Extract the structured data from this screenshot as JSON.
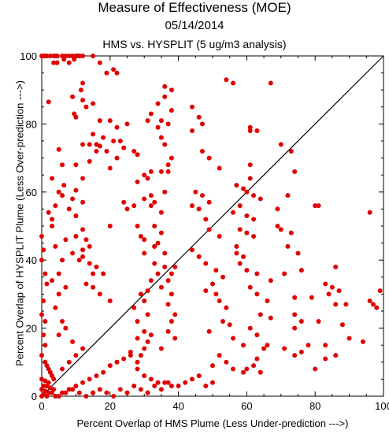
{
  "chart_data": {
    "type": "scatter",
    "title": "Measure of Effectiveness (MOE)",
    "subtitle": "05/14/2014",
    "subtitle2": "HMS vs. HYSPLIT  (5 ug/m3 analysis)",
    "xlabel": "Percent Overlap of HMS Plume (Less Under-prediction --->)",
    "ylabel": "Percent Overlap of HYSPLIT Plume (Less Over-prediction --->)",
    "xlim": [
      0,
      100
    ],
    "ylim": [
      0,
      100
    ],
    "xticks": [
      "0",
      "20",
      "40",
      "60",
      "80",
      "100"
    ],
    "yticks": [
      "0",
      "20",
      "40",
      "60",
      "80",
      "100"
    ],
    "grid": false,
    "reference_line": "diagonal y = x",
    "point_color": "#e00000",
    "points": [
      [
        0,
        100
      ],
      [
        0.5,
        100
      ],
      [
        1,
        100
      ],
      [
        1.5,
        100
      ],
      [
        2.5,
        100
      ],
      [
        3.5,
        100
      ],
      [
        4,
        100
      ],
      [
        4.5,
        100
      ],
      [
        6,
        100
      ],
      [
        7,
        100
      ],
      [
        8,
        100
      ],
      [
        9,
        100
      ],
      [
        10,
        100
      ],
      [
        10.5,
        100
      ],
      [
        11,
        100
      ],
      [
        12,
        100
      ],
      [
        15,
        100
      ],
      [
        6.5,
        99
      ],
      [
        9.5,
        99
      ],
      [
        3.5,
        98
      ],
      [
        4.5,
        98
      ],
      [
        8,
        98
      ],
      [
        17,
        98
      ],
      [
        21,
        96
      ],
      [
        19,
        95
      ],
      [
        22,
        95
      ],
      [
        12,
        92
      ],
      [
        11.5,
        90
      ],
      [
        9,
        88
      ],
      [
        12,
        87
      ],
      [
        2,
        86.5
      ],
      [
        15,
        86
      ],
      [
        13,
        85
      ],
      [
        9.5,
        83
      ],
      [
        10,
        82
      ],
      [
        17,
        81
      ],
      [
        20,
        81
      ],
      [
        25,
        80
      ],
      [
        22,
        79
      ],
      [
        15,
        77
      ],
      [
        18,
        76
      ],
      [
        21,
        75
      ],
      [
        23,
        75
      ],
      [
        12,
        74
      ],
      [
        14,
        74
      ],
      [
        16,
        74
      ],
      [
        17,
        73.5
      ],
      [
        5,
        72.5
      ],
      [
        16,
        72
      ],
      [
        19,
        72
      ],
      [
        24,
        73
      ],
      [
        27,
        72
      ],
      [
        28,
        71
      ],
      [
        22,
        70
      ],
      [
        14,
        69
      ],
      [
        10,
        68
      ],
      [
        20,
        67
      ],
      [
        12,
        64
      ],
      [
        6.5,
        62
      ],
      [
        10,
        60.5
      ],
      [
        6,
        59
      ],
      [
        9,
        58
      ],
      [
        12,
        57
      ],
      [
        8,
        55
      ],
      [
        10,
        53
      ],
      [
        3,
        52
      ],
      [
        20,
        50
      ],
      [
        12,
        49
      ],
      [
        10,
        47
      ],
      [
        13,
        46
      ],
      [
        14,
        44
      ],
      [
        12,
        43
      ],
      [
        9,
        42
      ],
      [
        12,
        41
      ],
      [
        11,
        40
      ],
      [
        14,
        39
      ],
      [
        16,
        38
      ],
      [
        15,
        36
      ],
      [
        18,
        36
      ],
      [
        13,
        33
      ],
      [
        15,
        32
      ],
      [
        17,
        30
      ],
      [
        20,
        28
      ],
      [
        24,
        57
      ],
      [
        28,
        63
      ],
      [
        30,
        65
      ],
      [
        31,
        64
      ],
      [
        32,
        66
      ],
      [
        30,
        58
      ],
      [
        32,
        59
      ],
      [
        27,
        56
      ],
      [
        25,
        55
      ],
      [
        28,
        50
      ],
      [
        29,
        47
      ],
      [
        30,
        46
      ],
      [
        33,
        44
      ],
      [
        30,
        42
      ],
      [
        33,
        39
      ],
      [
        36,
        38
      ],
      [
        34,
        36
      ],
      [
        32,
        34
      ],
      [
        35,
        32
      ],
      [
        31,
        31
      ],
      [
        29,
        30
      ],
      [
        30,
        28
      ],
      [
        27,
        26
      ],
      [
        31,
        24
      ],
      [
        28,
        22
      ],
      [
        30,
        19
      ],
      [
        32,
        18
      ],
      [
        28,
        17
      ],
      [
        31,
        16
      ],
      [
        30,
        14
      ],
      [
        26,
        13
      ],
      [
        29,
        12
      ],
      [
        28,
        10
      ],
      [
        31,
        81
      ],
      [
        36,
        91
      ],
      [
        38,
        90
      ],
      [
        36,
        88
      ],
      [
        34,
        86
      ],
      [
        38,
        84
      ],
      [
        32,
        83
      ],
      [
        35,
        81
      ],
      [
        37,
        80
      ],
      [
        34,
        79
      ],
      [
        35,
        76
      ],
      [
        36,
        74
      ],
      [
        38,
        70
      ],
      [
        37,
        68
      ],
      [
        37,
        66
      ],
      [
        35,
        66
      ],
      [
        36,
        60
      ],
      [
        33,
        57
      ],
      [
        32,
        56
      ],
      [
        35,
        54
      ],
      [
        33,
        50
      ],
      [
        35,
        48
      ],
      [
        34,
        45
      ],
      [
        33,
        44
      ],
      [
        36,
        42
      ],
      [
        39,
        38
      ],
      [
        38,
        36
      ],
      [
        37,
        34
      ],
      [
        38,
        30
      ],
      [
        37,
        27
      ],
      [
        39,
        24
      ],
      [
        38,
        22
      ],
      [
        37,
        19
      ],
      [
        39,
        17
      ],
      [
        35,
        14
      ],
      [
        44,
        85
      ],
      [
        46,
        82
      ],
      [
        47,
        80
      ],
      [
        44,
        78
      ],
      [
        47,
        72
      ],
      [
        49,
        70
      ],
      [
        52,
        67
      ],
      [
        45,
        60
      ],
      [
        47,
        59
      ],
      [
        49,
        57
      ],
      [
        44,
        56
      ],
      [
        46,
        55
      ],
      [
        48,
        52
      ],
      [
        49,
        49
      ],
      [
        52,
        47
      ],
      [
        44,
        43
      ],
      [
        46,
        41
      ],
      [
        48,
        39
      ],
      [
        51,
        37
      ],
      [
        53,
        35
      ],
      [
        50,
        33
      ],
      [
        48,
        31
      ],
      [
        51,
        30
      ],
      [
        52,
        28
      ],
      [
        54,
        26
      ],
      [
        53,
        22
      ],
      [
        55,
        21
      ],
      [
        49,
        19
      ],
      [
        56,
        17
      ],
      [
        59,
        15
      ],
      [
        52,
        12
      ],
      [
        54,
        10
      ],
      [
        50,
        9
      ],
      [
        56,
        8
      ],
      [
        59,
        7
      ],
      [
        54,
        93
      ],
      [
        56,
        92
      ],
      [
        61,
        79
      ],
      [
        61,
        78
      ],
      [
        63,
        78
      ],
      [
        61,
        68
      ],
      [
        61,
        64
      ],
      [
        57,
        62
      ],
      [
        59,
        61
      ],
      [
        60,
        60
      ],
      [
        62,
        59
      ],
      [
        64,
        58
      ],
      [
        58,
        56
      ],
      [
        56,
        54
      ],
      [
        60,
        53
      ],
      [
        62,
        52
      ],
      [
        58,
        49
      ],
      [
        60,
        48
      ],
      [
        62,
        47
      ],
      [
        57,
        44
      ],
      [
        57,
        42
      ],
      [
        59,
        41
      ],
      [
        58,
        39
      ],
      [
        60,
        37
      ],
      [
        63,
        36
      ],
      [
        67,
        34
      ],
      [
        61,
        32
      ],
      [
        63,
        30
      ],
      [
        66,
        28
      ],
      [
        64,
        24
      ],
      [
        67,
        23
      ],
      [
        61,
        20
      ],
      [
        63,
        18
      ],
      [
        66,
        15
      ],
      [
        65,
        14
      ],
      [
        63,
        11
      ],
      [
        62,
        9
      ],
      [
        60,
        8
      ],
      [
        64,
        7
      ],
      [
        67,
        92
      ],
      [
        70,
        74
      ],
      [
        73,
        72
      ],
      [
        74,
        66
      ],
      [
        72,
        59
      ],
      [
        69,
        55
      ],
      [
        69,
        50
      ],
      [
        70,
        49
      ],
      [
        73,
        48
      ],
      [
        72,
        44
      ],
      [
        75,
        42
      ],
      [
        76,
        37
      ],
      [
        71,
        36
      ],
      [
        74,
        29
      ],
      [
        74,
        24
      ],
      [
        76,
        22
      ],
      [
        74,
        20
      ],
      [
        71,
        14
      ],
      [
        74,
        12
      ],
      [
        78,
        15
      ],
      [
        76,
        13
      ],
      [
        81,
        56
      ],
      [
        80,
        56
      ],
      [
        86,
        38
      ],
      [
        83,
        33
      ],
      [
        85,
        32
      ],
      [
        87,
        31
      ],
      [
        84,
        30
      ],
      [
        89,
        27
      ],
      [
        88,
        21
      ],
      [
        90,
        17
      ],
      [
        83,
        15
      ],
      [
        96,
        28
      ],
      [
        97,
        27
      ],
      [
        98,
        26
      ],
      [
        99,
        31
      ],
      [
        94,
        16
      ],
      [
        96,
        54
      ],
      [
        83,
        11
      ],
      [
        80,
        8
      ],
      [
        86,
        12
      ],
      [
        81,
        22
      ],
      [
        79,
        29
      ],
      [
        86,
        27
      ],
      [
        0,
        47
      ],
      [
        0.5,
        43
      ],
      [
        0,
        40
      ],
      [
        1,
        36
      ],
      [
        1.5,
        33
      ],
      [
        0.5,
        28
      ],
      [
        0,
        24
      ],
      [
        1,
        22
      ],
      [
        0.5,
        18
      ],
      [
        1,
        15
      ],
      [
        0,
        12
      ],
      [
        1,
        10
      ],
      [
        1.5,
        9
      ],
      [
        2,
        8
      ],
      [
        2.5,
        7
      ],
      [
        3,
        6
      ],
      [
        3.5,
        5
      ],
      [
        0,
        5
      ],
      [
        1,
        4.5
      ],
      [
        2,
        4
      ],
      [
        0.5,
        3
      ],
      [
        1.5,
        3
      ],
      [
        2.5,
        2.5
      ],
      [
        3.5,
        2
      ],
      [
        0,
        2
      ],
      [
        1,
        1.5
      ],
      [
        2,
        1
      ],
      [
        3,
        1
      ],
      [
        0.5,
        0.5
      ],
      [
        1.5,
        0
      ],
      [
        0,
        0
      ],
      [
        4,
        0
      ],
      [
        6,
        1
      ],
      [
        8,
        2
      ],
      [
        10,
        3
      ],
      [
        12,
        4
      ],
      [
        14,
        5
      ],
      [
        16,
        6
      ],
      [
        18,
        7
      ],
      [
        20,
        9
      ],
      [
        22,
        10
      ],
      [
        24,
        11
      ],
      [
        26,
        12
      ],
      [
        28,
        8
      ],
      [
        30,
        6
      ],
      [
        32,
        5
      ],
      [
        34,
        4
      ],
      [
        36,
        4
      ],
      [
        38,
        3
      ],
      [
        40,
        3
      ],
      [
        42,
        4
      ],
      [
        44,
        5
      ],
      [
        46,
        6
      ],
      [
        48,
        3
      ],
      [
        50,
        4
      ],
      [
        5,
        0
      ],
      [
        7,
        1
      ],
      [
        9,
        2
      ],
      [
        11,
        1
      ],
      [
        13,
        0
      ],
      [
        15,
        1
      ],
      [
        17,
        2
      ],
      [
        19,
        1
      ],
      [
        21,
        0
      ],
      [
        23,
        2
      ],
      [
        25,
        1
      ],
      [
        27,
        3
      ],
      [
        29,
        2
      ],
      [
        31,
        1
      ],
      [
        33,
        3
      ],
      [
        35,
        2
      ],
      [
        37,
        4
      ],
      [
        6,
        8
      ],
      [
        8,
        10
      ],
      [
        10,
        12
      ],
      [
        12,
        14
      ],
      [
        5,
        18
      ],
      [
        7,
        20
      ],
      [
        9,
        16
      ],
      [
        6,
        22
      ],
      [
        4,
        26
      ],
      [
        5,
        30
      ],
      [
        7,
        32
      ],
      [
        3,
        34
      ],
      [
        5,
        36
      ],
      [
        6,
        40
      ],
      [
        4,
        44
      ],
      [
        7,
        46
      ],
      [
        3,
        50
      ],
      [
        2,
        54
      ],
      [
        4,
        56
      ],
      [
        5,
        60
      ],
      [
        3,
        64
      ],
      [
        6,
        68
      ]
    ]
  }
}
